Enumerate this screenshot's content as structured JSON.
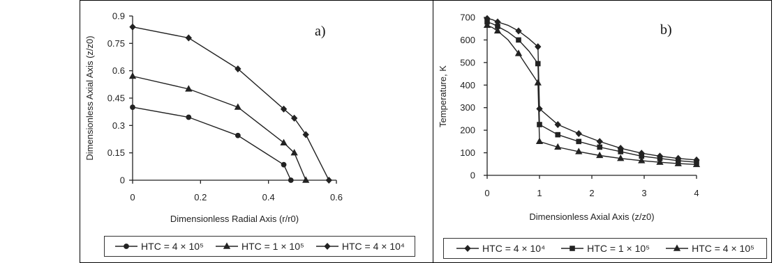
{
  "chart_data": [
    {
      "type": "line",
      "panel_label": "a)",
      "xlabel": "Dimensionless Radial Axis (r/r0)",
      "ylabel": "Dimensionless Axial Axis (z/z0)",
      "xlim": [
        0,
        0.6
      ],
      "ylim": [
        0,
        0.9
      ],
      "xticks": [
        "0",
        "0.2",
        "0.4",
        "0.6"
      ],
      "xtick_values": [
        0,
        0.2,
        0.4,
        0.6
      ],
      "yticks": [
        "0",
        "0.15",
        "0.3",
        "0.45",
        "0.6",
        "0.75",
        "0.9"
      ],
      "ytick_values": [
        0,
        0.15,
        0.3,
        0.45,
        0.6,
        0.75,
        0.9
      ],
      "legend_position": "bottom",
      "series": [
        {
          "name": "HTC = 4 × 10⁵",
          "marker": "circle",
          "x": [
            0,
            0.165,
            0.31,
            0.445,
            0.466
          ],
          "y": [
            0.4,
            0.345,
            0.245,
            0.085,
            0
          ]
        },
        {
          "name": "HTC = 1 × 10⁵",
          "marker": "triangle",
          "x": [
            0,
            0.165,
            0.31,
            0.445,
            0.476,
            0.51
          ],
          "y": [
            0.57,
            0.5,
            0.4,
            0.205,
            0.15,
            0
          ]
        },
        {
          "name": "HTC = 4 × 10⁴",
          "marker": "diamond",
          "x": [
            0,
            0.165,
            0.31,
            0.445,
            0.476,
            0.51,
            0.578
          ],
          "y": [
            0.84,
            0.78,
            0.61,
            0.39,
            0.34,
            0.25,
            0
          ]
        }
      ]
    },
    {
      "type": "line",
      "panel_label": "b)",
      "xlabel": "Dimensionless Axial Axis (z/z0)",
      "ylabel": "Temperature, K",
      "xlim": [
        0,
        4
      ],
      "ylim": [
        0,
        700
      ],
      "xticks": [
        "0",
        "1",
        "2",
        "3",
        "4"
      ],
      "xtick_values": [
        0,
        1,
        2,
        3,
        4
      ],
      "yticks": [
        "0",
        "100",
        "200",
        "300",
        "400",
        "500",
        "600",
        "700"
      ],
      "ytick_values": [
        0,
        100,
        200,
        300,
        400,
        500,
        600,
        700
      ],
      "legend_position": "bottom",
      "series": [
        {
          "name": "HTC = 4 × 10⁴",
          "marker": "diamond",
          "x": [
            0,
            0.1,
            0.2,
            0.4,
            0.6,
            0.8,
            0.97,
            1.0,
            1.35,
            1.75,
            2.15,
            2.55,
            2.95,
            3.3,
            3.65,
            4.0
          ],
          "y": [
            695,
            690,
            680,
            665,
            640,
            605,
            570,
            295,
            225,
            185,
            150,
            120,
            98,
            85,
            75,
            68
          ]
        },
        {
          "name": "HTC = 1 × 10⁵",
          "marker": "square",
          "x": [
            0,
            0.1,
            0.2,
            0.4,
            0.6,
            0.8,
            0.97,
            1.0,
            1.35,
            1.75,
            2.15,
            2.55,
            2.95,
            3.3,
            3.65,
            4.0
          ],
          "y": [
            680,
            672,
            660,
            635,
            600,
            550,
            495,
            225,
            180,
            150,
            125,
            105,
            85,
            75,
            65,
            58
          ]
        },
        {
          "name": "HTC = 4 × 10⁵",
          "marker": "triangle",
          "x": [
            0,
            0.1,
            0.2,
            0.4,
            0.6,
            0.8,
            0.97,
            1.0,
            1.35,
            1.75,
            2.15,
            2.55,
            2.95,
            3.3,
            3.65,
            4.0
          ],
          "y": [
            665,
            655,
            640,
            600,
            540,
            470,
            410,
            150,
            125,
            105,
            88,
            75,
            65,
            58,
            52,
            48
          ]
        }
      ]
    }
  ],
  "legends": [
    {
      "items": [
        {
          "marker": "circle",
          "label": "HTC = 4 × 10⁵"
        },
        {
          "marker": "triangle",
          "label": "HTC = 1 × 10⁵"
        },
        {
          "marker": "diamond",
          "label": "HTC = 4 × 10⁴"
        }
      ]
    },
    {
      "items": [
        {
          "marker": "diamond",
          "label": "HTC = 4 × 10⁴"
        },
        {
          "marker": "square",
          "label": "HTC = 1 × 10⁵"
        },
        {
          "marker": "triangle",
          "label": "HTC = 4 × 10⁵"
        }
      ]
    }
  ]
}
